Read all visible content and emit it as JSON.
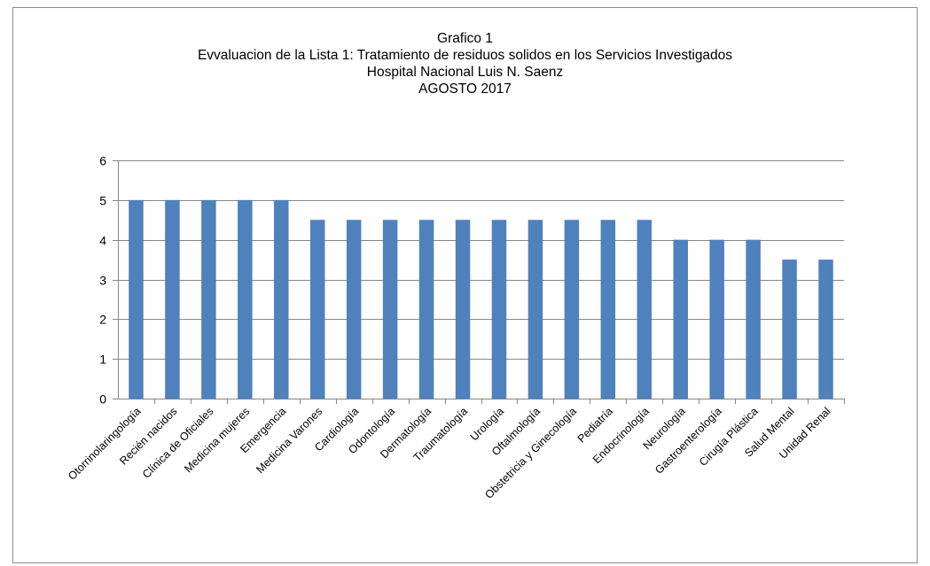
{
  "chart_data": {
    "type": "bar",
    "title_lines": [
      "Grafico 1",
      "Evvaluacion  de la Lista 1:  Tratamiento de residuos solidos en los Servicios Investigados",
      "Hospital Nacional Luis N. Saenz",
      "AGOSTO 2017"
    ],
    "categories": [
      "Otorrinolaringología",
      "Recién nacidos",
      "Clínica de Oficiales",
      "Medicina mujeres",
      "Emergencia",
      "Medicina Varones",
      "Cardiología",
      "Odontología",
      "Dermatología",
      "Traumatología",
      "Urología",
      "Oftalmología",
      "Obstetricia y Ginecología",
      "Pediatría",
      "Endocrinología",
      "Neurología",
      "Gastroenterología",
      "Cirugía Plástica",
      "Salud Mental",
      "Unidad Renal"
    ],
    "values": [
      5,
      5,
      5,
      5,
      5,
      4.5,
      4.5,
      4.5,
      4.5,
      4.5,
      4.5,
      4.5,
      4.5,
      4.5,
      4.5,
      4,
      4,
      4,
      3.5,
      3.5
    ],
    "xlabel": "",
    "ylabel": "",
    "ylim": [
      0,
      6
    ],
    "yticks": [
      0,
      1,
      2,
      3,
      4,
      5,
      6
    ],
    "grid": true,
    "legend": "none",
    "bar_color": "#4f81bd"
  }
}
